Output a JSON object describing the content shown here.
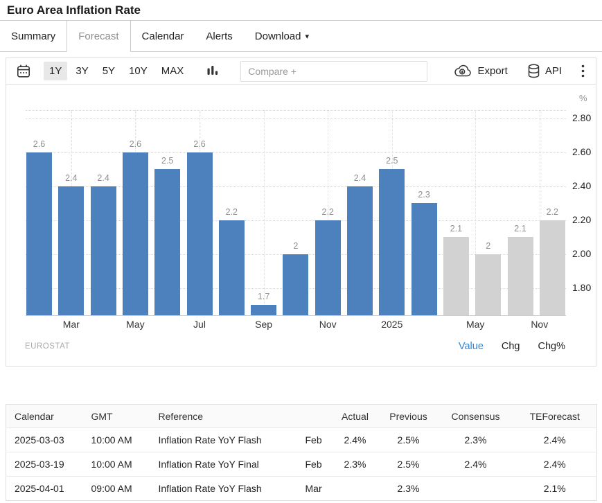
{
  "header": {
    "title": "Euro Area Inflation Rate"
  },
  "tabs": [
    {
      "label": "Summary",
      "active": false
    },
    {
      "label": "Forecast",
      "active": true
    },
    {
      "label": "Calendar",
      "active": false
    },
    {
      "label": "Alerts",
      "active": false
    },
    {
      "label": "Download",
      "active": false,
      "caret": "▾"
    }
  ],
  "toolbar": {
    "ranges": [
      "1Y",
      "3Y",
      "5Y",
      "10Y",
      "MAX"
    ],
    "active_range": "1Y",
    "compare_placeholder": "Compare +",
    "export_label": "Export",
    "api_label": "API",
    "icons": [
      "calendar-icon",
      "column-chart-icon",
      "cloud-download-icon",
      "database-icon",
      "kebab-menu-icon"
    ]
  },
  "chart_data": {
    "type": "bar",
    "title": "Euro Area Inflation Rate",
    "unit": "%",
    "source": "EUROSTAT",
    "series": [
      {
        "name": "actual",
        "color": "#4d81bd",
        "values": [
          2.6,
          2.4,
          2.4,
          2.6,
          2.5,
          2.6,
          2.2,
          1.7,
          2,
          2.2,
          2.4,
          2.5,
          2.3
        ]
      },
      {
        "name": "forecast",
        "color": "#d2d2d2",
        "values": [
          2.1,
          2,
          2.1,
          2.2
        ]
      }
    ],
    "bar_labels": [
      "2.6",
      "2.4",
      "2.4",
      "2.6",
      "2.5",
      "2.6",
      "2.2",
      "1.7",
      "2",
      "2.2",
      "2.4",
      "2.5",
      "2.3",
      "2.1",
      "2",
      "2.1",
      "2.2"
    ],
    "x_ticks": [
      {
        "label": "Mar",
        "x": 1
      },
      {
        "label": "May",
        "x": 3
      },
      {
        "label": "Jul",
        "x": 5
      },
      {
        "label": "Sep",
        "x": 7
      },
      {
        "label": "Nov",
        "x": 9
      },
      {
        "label": "2025",
        "x": 11
      },
      {
        "label": "May",
        "x": 13.6
      },
      {
        "label": "Nov",
        "x": 15.6
      }
    ],
    "y_ticks": [
      {
        "label": "1.80",
        "value": 1.8
      },
      {
        "label": "2.00",
        "value": 2.0
      },
      {
        "label": "2.20",
        "value": 2.2
      },
      {
        "label": "2.40",
        "value": 2.4
      },
      {
        "label": "2.60",
        "value": 2.6
      },
      {
        "label": "2.80",
        "value": 2.8
      }
    ],
    "ylim": [
      1.64,
      2.85
    ],
    "grid": true,
    "legend_position": "none",
    "footer_links": [
      "Value",
      "Chg",
      "Chg%"
    ],
    "active_footer_link": "Value",
    "link_active_color": "#2d86e0"
  },
  "table": {
    "headers": [
      "Calendar",
      "GMT",
      "Reference",
      "",
      "Actual",
      "Previous",
      "Consensus",
      "TEForecast"
    ],
    "rows": [
      [
        "2025-03-03",
        "10:00 AM",
        "Inflation Rate YoY Flash",
        "Feb",
        "2.4%",
        "2.5%",
        "2.3%",
        "2.4%"
      ],
      [
        "2025-03-19",
        "10:00 AM",
        "Inflation Rate YoY Final",
        "Feb",
        "2.3%",
        "2.5%",
        "2.4%",
        "2.4%"
      ],
      [
        "2025-04-01",
        "09:00 AM",
        "Inflation Rate YoY Flash",
        "Mar",
        "",
        "2.3%",
        "",
        "2.1%"
      ]
    ]
  }
}
